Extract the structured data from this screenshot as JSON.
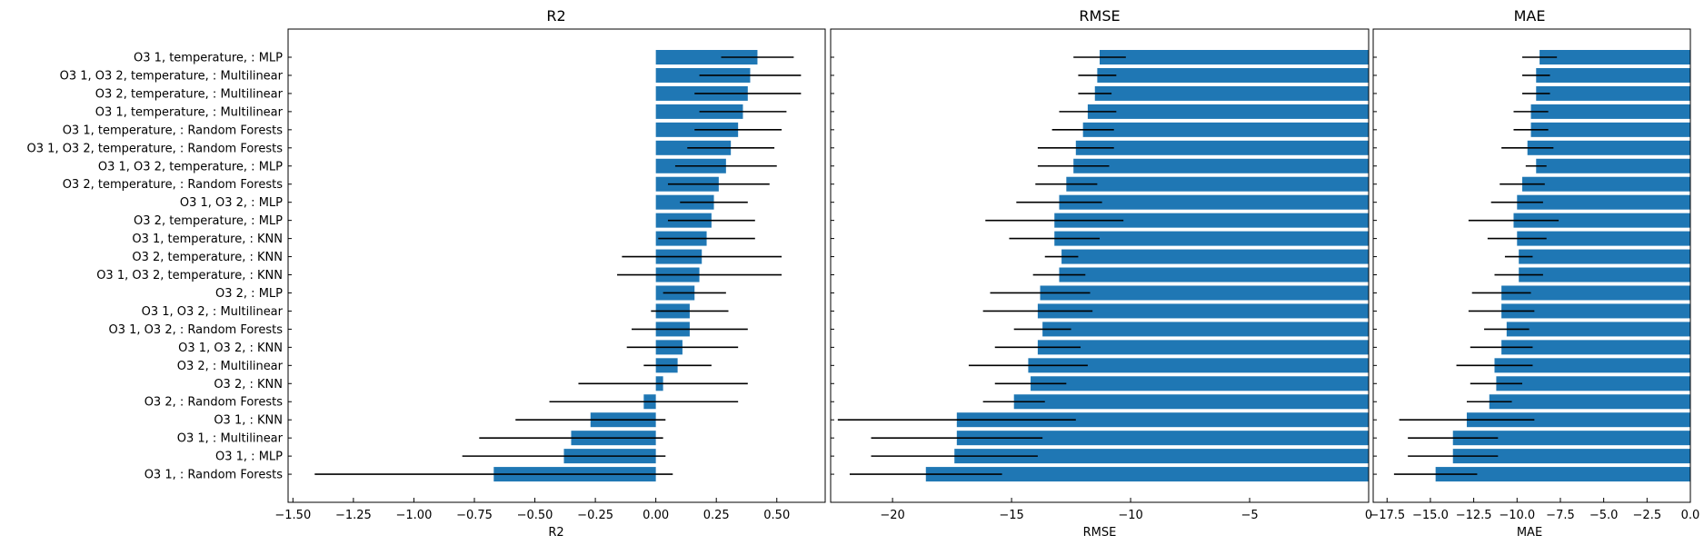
{
  "chart_data": [
    {
      "type": "bar",
      "orientation": "horizontal",
      "title": "R2",
      "xlabel": "R2",
      "xlim": [
        -1.52,
        0.7
      ],
      "xticks": [
        -1.5,
        -1.25,
        -1.0,
        -0.75,
        -0.5,
        -0.25,
        0.0,
        0.25,
        0.5
      ],
      "xtick_labels": [
        "−1.50",
        "−1.25",
        "−1.00",
        "−0.75",
        "−0.50",
        "−0.25",
        "0.00",
        "0.25",
        "0.50"
      ],
      "categories": [
        "O3 1, temperature, : MLP",
        "O3 1, O3 2, temperature, : Multilinear",
        "O3 2, temperature, : Multilinear",
        "O3 1, temperature, : Multilinear",
        "O3 1, temperature, : Random Forests",
        "O3 1, O3 2, temperature, : Random Forests",
        "O3 1, O3 2, temperature, : MLP",
        "O3 2, temperature, : Random Forests",
        "O3 1, O3 2, : MLP",
        "O3 2, temperature, : MLP",
        "O3 1, temperature, : KNN",
        "O3 2, temperature, : KNN",
        "O3 1, O3 2, temperature, : KNN",
        "O3 2, : MLP",
        "O3 1, O3 2, : Multilinear",
        "O3 1, O3 2, : Random Forests",
        "O3 1, O3 2, : KNN",
        "O3 2, : Multilinear",
        "O3 2, : KNN",
        "O3 2, : Random Forests",
        "O3 1, : KNN",
        "O3 1, : Multilinear",
        "O3 1, : MLP",
        "O3 1, : Random Forests"
      ],
      "values": [
        0.42,
        0.39,
        0.38,
        0.36,
        0.34,
        0.31,
        0.29,
        0.26,
        0.24,
        0.23,
        0.21,
        0.19,
        0.18,
        0.16,
        0.14,
        0.14,
        0.11,
        0.09,
        0.03,
        -0.05,
        -0.27,
        -0.35,
        -0.38,
        -0.67
      ],
      "errors": [
        0.15,
        0.21,
        0.22,
        0.18,
        0.18,
        0.18,
        0.21,
        0.21,
        0.14,
        0.18,
        0.2,
        0.33,
        0.34,
        0.13,
        0.16,
        0.24,
        0.23,
        0.14,
        0.35,
        0.39,
        0.31,
        0.38,
        0.42,
        0.74
      ],
      "color": "#1f77b4",
      "error_color": "#000000"
    },
    {
      "type": "bar",
      "orientation": "horizontal",
      "title": "RMSE",
      "xlabel": "RMSE",
      "xlim": [
        -22.6,
        0.0
      ],
      "xticks": [
        -20,
        -15,
        -10,
        -5,
        0
      ],
      "xtick_labels": [
        "−20",
        "−15",
        "−10",
        "−5",
        "0"
      ],
      "values": [
        -11.3,
        -11.4,
        -11.5,
        -11.8,
        -12.0,
        -12.3,
        -12.4,
        -12.7,
        -13.0,
        -13.2,
        -13.2,
        -12.9,
        -13.0,
        -13.8,
        -13.9,
        -13.7,
        -13.9,
        -14.3,
        -14.2,
        -14.9,
        -17.3,
        -17.3,
        -17.4,
        -18.6
      ],
      "errors": [
        1.1,
        0.8,
        0.7,
        1.2,
        1.3,
        1.6,
        1.5,
        1.3,
        1.8,
        2.9,
        1.9,
        0.7,
        1.1,
        2.1,
        2.3,
        1.2,
        1.8,
        2.5,
        1.5,
        1.3,
        5.0,
        3.6,
        3.5,
        3.2
      ],
      "color": "#1f77b4",
      "error_color": "#000000"
    },
    {
      "type": "bar",
      "orientation": "horizontal",
      "title": "MAE",
      "xlabel": "MAE",
      "xlim": [
        -18.3,
        0.0
      ],
      "xticks": [
        -17.5,
        -15,
        -12.5,
        -10,
        -7.5,
        -5,
        -2.5,
        0
      ],
      "xtick_labels": [
        "−17.5",
        "−15.0",
        "−12.5",
        "−10.0",
        "−7.5",
        "−5.0",
        "−2.5",
        "0.0"
      ],
      "values": [
        -8.7,
        -8.9,
        -8.9,
        -9.2,
        -9.2,
        -9.4,
        -8.9,
        -9.7,
        -10.0,
        -10.2,
        -10.0,
        -9.9,
        -9.9,
        -10.9,
        -10.9,
        -10.6,
        -10.9,
        -11.3,
        -11.2,
        -11.6,
        -12.9,
        -13.7,
        -13.7,
        -14.7
      ],
      "errors": [
        1.0,
        0.8,
        0.8,
        1.0,
        1.0,
        1.5,
        0.6,
        1.3,
        1.5,
        2.6,
        1.7,
        0.8,
        1.4,
        1.7,
        1.9,
        1.3,
        1.8,
        2.2,
        1.5,
        1.3,
        3.9,
        2.6,
        2.6,
        2.4
      ],
      "color": "#1f77b4",
      "error_color": "#000000"
    }
  ]
}
